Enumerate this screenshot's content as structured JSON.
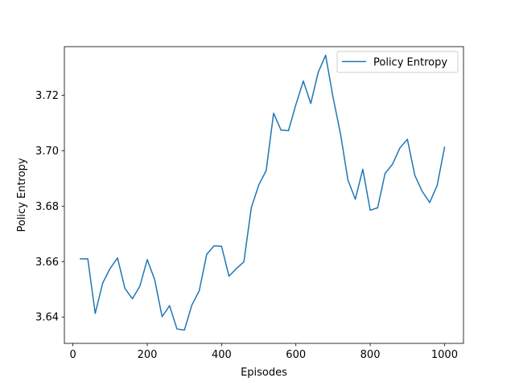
{
  "chart_data": {
    "type": "line",
    "title": "",
    "xlabel": "Episodes",
    "ylabel": "Policy Entropy",
    "xlim": [
      -23,
      1051
    ],
    "ylim": [
      3.6305,
      3.7375
    ],
    "xticks": [
      0,
      200,
      400,
      600,
      800,
      1000
    ],
    "yticks": [
      3.64,
      3.66,
      3.68,
      3.7,
      3.72
    ],
    "ytick_labels": [
      "3.64",
      "3.66",
      "3.68",
      "3.70",
      "3.72"
    ],
    "grid": false,
    "legend_position": "top-right",
    "series": [
      {
        "name": "Policy Entropy",
        "color": "#1f77b4",
        "x": [
          20,
          40,
          60,
          80,
          100,
          120,
          140,
          160,
          180,
          200,
          220,
          240,
          260,
          280,
          300,
          320,
          340,
          360,
          380,
          400,
          420,
          440,
          460,
          480,
          500,
          520,
          540,
          560,
          580,
          600,
          620,
          640,
          660,
          680,
          700,
          720,
          740,
          760,
          780,
          800,
          820,
          840,
          860,
          880,
          900,
          920,
          940,
          960,
          980,
          1000
        ],
        "y": [
          3.661,
          3.661,
          3.6413,
          3.6522,
          3.6575,
          3.6613,
          3.6503,
          3.6466,
          3.6511,
          3.6607,
          3.6535,
          3.6401,
          3.6441,
          3.6357,
          3.6353,
          3.6443,
          3.6495,
          3.6626,
          3.6657,
          3.6655,
          3.6547,
          3.6575,
          3.6599,
          3.6794,
          3.6876,
          3.6928,
          3.7135,
          3.7074,
          3.7072,
          3.7166,
          3.7251,
          3.717,
          3.7282,
          3.7344,
          3.7192,
          3.7061,
          3.6894,
          3.6825,
          3.6933,
          3.6785,
          3.6794,
          3.6918,
          3.6951,
          3.701,
          3.7041,
          3.6911,
          3.6853,
          3.6813,
          3.6874,
          3.7012
        ]
      }
    ]
  }
}
